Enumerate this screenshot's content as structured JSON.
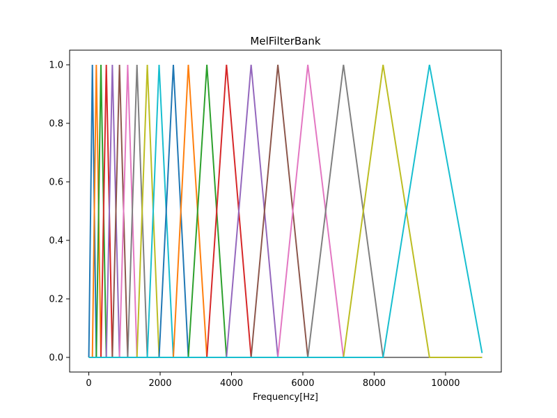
{
  "chart_data": {
    "type": "line",
    "title": "MelFilterBank",
    "xlabel": "Frequency[Hz]",
    "ylabel": "",
    "xlim": [
      -538,
      11564
    ],
    "ylim": [
      -0.05,
      1.05
    ],
    "xticks": [
      0,
      2000,
      4000,
      6000,
      8000,
      10000
    ],
    "xtick_labels": [
      "0",
      "2000",
      "4000",
      "6000",
      "8000",
      "10000"
    ],
    "yticks": [
      0.0,
      0.2,
      0.4,
      0.6,
      0.8,
      1.0
    ],
    "ytick_labels": [
      "0.0",
      "0.2",
      "0.4",
      "0.6",
      "0.8",
      "1.0"
    ],
    "grid": false,
    "x_max": 11025,
    "edges": [
      0,
      100,
      210,
      340,
      490,
      660,
      860,
      1090,
      1350,
      1640,
      1970,
      2370,
      2790,
      3310,
      3860,
      4550,
      5300,
      6140,
      7140,
      8250,
      9550,
      11025
    ],
    "colors": [
      "#1f77b4",
      "#ff7f0e",
      "#2ca02c",
      "#d62728",
      "#9467bd",
      "#8c564b",
      "#e377c2",
      "#7f7f7f",
      "#bcbd22",
      "#17becf"
    ],
    "series": [
      {
        "peak_x": 100,
        "peak_y": 1.0
      },
      {
        "peak_x": 210,
        "peak_y": 1.0
      },
      {
        "peak_x": 340,
        "peak_y": 1.0
      },
      {
        "peak_x": 490,
        "peak_y": 1.0
      },
      {
        "peak_x": 660,
        "peak_y": 1.0
      },
      {
        "peak_x": 860,
        "peak_y": 1.0
      },
      {
        "peak_x": 1090,
        "peak_y": 1.0
      },
      {
        "peak_x": 1350,
        "peak_y": 1.0
      },
      {
        "peak_x": 1640,
        "peak_y": 1.0
      },
      {
        "peak_x": 1970,
        "peak_y": 1.0
      },
      {
        "peak_x": 2370,
        "peak_y": 1.0
      },
      {
        "peak_x": 2790,
        "peak_y": 1.0
      },
      {
        "peak_x": 3310,
        "peak_y": 1.0
      },
      {
        "peak_x": 3860,
        "peak_y": 1.0
      },
      {
        "peak_x": 4550,
        "peak_y": 1.0
      },
      {
        "peak_x": 5300,
        "peak_y": 1.0
      },
      {
        "peak_x": 6140,
        "peak_y": 1.0
      },
      {
        "peak_x": 7140,
        "peak_y": 1.0
      },
      {
        "peak_x": 8250,
        "peak_y": 1.0
      },
      {
        "peak_x": 9550,
        "peak_y": 1.0
      }
    ],
    "last_filter_end_y": 0.015
  }
}
